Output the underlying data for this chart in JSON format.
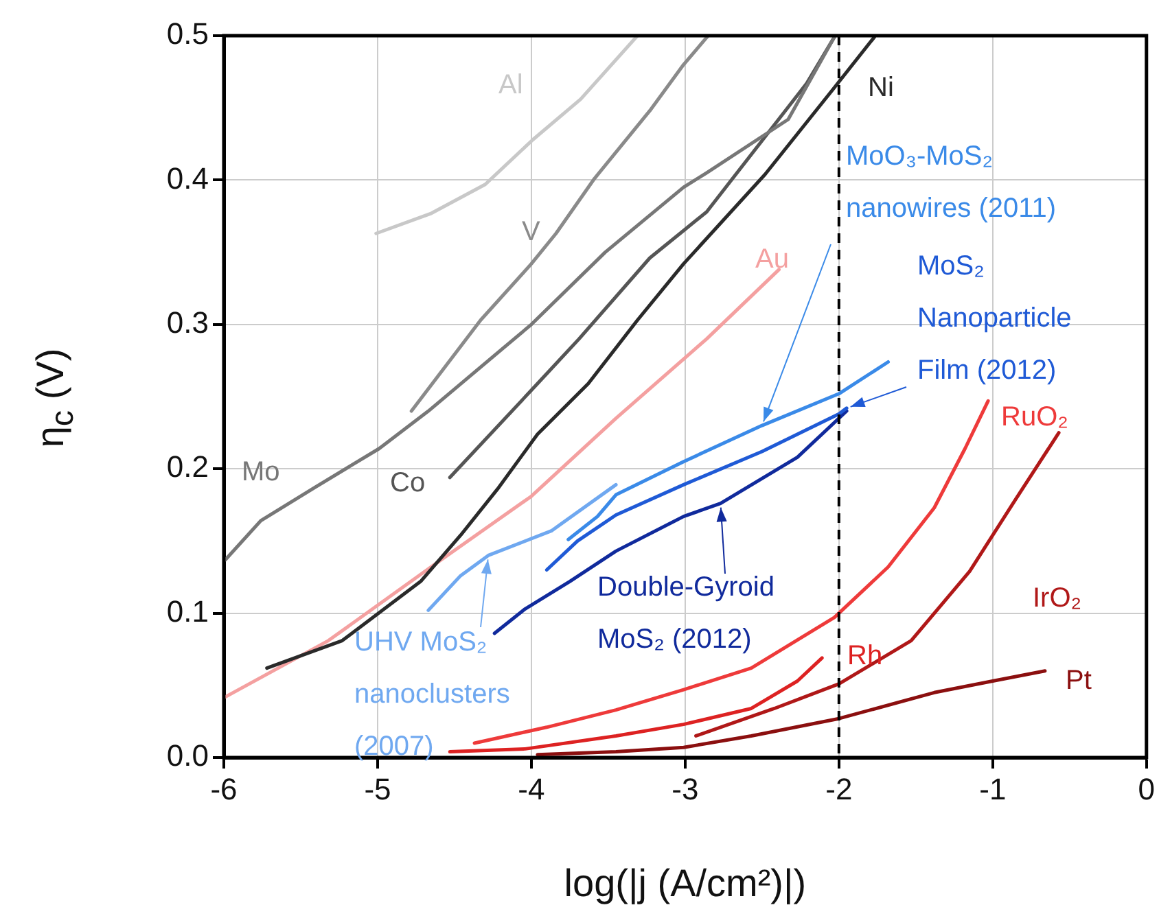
{
  "chart_data": {
    "type": "line",
    "xlabel": "log(|j (A/cm²)|)",
    "ylabel": "η$_{c}$ (V)",
    "xlim": [
      -6,
      0
    ],
    "xticks": [
      -6,
      -5,
      -4,
      -3,
      -2,
      -1,
      0
    ],
    "ylim": [
      0,
      0.5
    ],
    "yticks": [
      {
        "value": 0,
        "label": "0.0"
      },
      {
        "value": 0.1,
        "label": "0.1"
      },
      {
        "value": 0.2,
        "label": "0.2"
      },
      {
        "value": 0.3,
        "label": "0.3"
      },
      {
        "value": 0.4,
        "label": "0.4"
      },
      {
        "value": 0.5,
        "label": "0.5"
      }
    ],
    "grid": true,
    "legend": false,
    "marker": "none",
    "line_style": "solid",
    "ref_lines": [
      {
        "axis": "x",
        "value": -2,
        "color": "#000000",
        "line_style": "dashed"
      }
    ],
    "series": [
      {
        "name": "Al",
        "color": "#c8c8c8",
        "x": [
          -5.01,
          -4.65,
          -4.3,
          -3.99,
          -3.68,
          -3.31
        ],
        "values": [
          0.363,
          0.377,
          0.397,
          0.428,
          0.456,
          0.5
        ]
      },
      {
        "name": "V",
        "color": "#8a8a8a",
        "x": [
          -4.78,
          -4.33,
          -4.0,
          -3.84,
          -3.59,
          -3.23,
          -3.01,
          -2.85
        ],
        "values": [
          0.24,
          0.303,
          0.342,
          0.363,
          0.401,
          0.448,
          0.48,
          0.5
        ]
      },
      {
        "name": "Mo",
        "color": "#777777",
        "x": [
          -5.99,
          -5.76,
          -5.41,
          -4.99,
          -4.67,
          -4.0,
          -3.52,
          -3.01,
          -2.86,
          -2.33,
          -2.03
        ],
        "values": [
          0.137,
          0.164,
          0.187,
          0.214,
          0.24,
          0.3,
          0.35,
          0.395,
          0.405,
          0.442,
          0.499
        ]
      },
      {
        "name": "Co",
        "color": "#555555",
        "x": [
          -4.53,
          -3.96,
          -3.69,
          -3.23,
          -3.01,
          -2.86,
          -2.21,
          -2.03
        ],
        "values": [
          0.194,
          0.259,
          0.29,
          0.346,
          0.365,
          0.378,
          0.467,
          0.499
        ]
      },
      {
        "name": "Ni",
        "color": "#2a2a2a",
        "x": [
          -5.72,
          -5.23,
          -4.72,
          -4.46,
          -4.22,
          -3.96,
          -3.63,
          -3.31,
          -3.01,
          -2.48,
          -2.03,
          -1.77
        ],
        "values": [
          0.062,
          0.081,
          0.122,
          0.154,
          0.186,
          0.224,
          0.259,
          0.303,
          0.342,
          0.404,
          0.464,
          0.499
        ]
      },
      {
        "name": "Au",
        "color": "#f4a0a0",
        "x": [
          -5.99,
          -5.32,
          -4.64,
          -4.0,
          -3.45,
          -2.86,
          -2.39
        ],
        "values": [
          0.042,
          0.081,
          0.133,
          0.181,
          0.235,
          0.29,
          0.338
        ]
      },
      {
        "name": "UHV MoS₂ nanoclusters (2007)",
        "color": "#6fa8f0",
        "x": [
          -4.67,
          -4.46,
          -4.28,
          -3.87,
          -3.45
        ],
        "values": [
          0.102,
          0.126,
          0.14,
          0.157,
          0.189
        ]
      },
      {
        "name": "MoO₃-MoS₂ nanowires (2011)",
        "color": "#3a8ae8",
        "x": [
          -3.76,
          -3.57,
          -3.45,
          -3.01,
          -2.5,
          -2.0,
          -1.68
        ],
        "values": [
          0.151,
          0.167,
          0.182,
          0.205,
          0.23,
          0.252,
          0.274
        ]
      },
      {
        "name": "MoS₂ Nanoparticle Film (2012)",
        "color": "#1f5ad6",
        "x": [
          -3.9,
          -3.7,
          -3.45,
          -3.01,
          -2.5,
          -2.0,
          -1.95
        ],
        "values": [
          0.13,
          0.15,
          0.168,
          0.189,
          0.212,
          0.238,
          0.242
        ]
      },
      {
        "name": "Double-Gyroid MoS₂ (2012)",
        "color": "#102a9c",
        "x": [
          -4.24,
          -4.04,
          -3.75,
          -3.45,
          -3.01,
          -2.77,
          -2.27,
          -1.95
        ],
        "values": [
          0.086,
          0.103,
          0.122,
          0.143,
          0.167,
          0.176,
          0.208,
          0.24
        ]
      },
      {
        "name": "RuO₂",
        "color": "#ee3a3a",
        "x": [
          -4.37,
          -3.9,
          -3.45,
          -3.01,
          -2.57,
          -2.03,
          -1.68,
          -1.38,
          -1.18,
          -1.03
        ],
        "values": [
          0.01,
          0.021,
          0.033,
          0.047,
          0.062,
          0.097,
          0.132,
          0.173,
          0.214,
          0.247
        ]
      },
      {
        "name": "Rh",
        "color": "#dd2222",
        "x": [
          -4.53,
          -4.04,
          -3.45,
          -3.01,
          -2.57,
          -2.27,
          -2.11
        ],
        "values": [
          0.004,
          0.006,
          0.015,
          0.023,
          0.034,
          0.053,
          0.069
        ]
      },
      {
        "name": "IrO₂",
        "color": "#b01818",
        "x": [
          -2.93,
          -2.42,
          -2.0,
          -1.53,
          -1.15,
          -0.85,
          -0.57
        ],
        "values": [
          0.015,
          0.034,
          0.051,
          0.081,
          0.129,
          0.179,
          0.225
        ]
      },
      {
        "name": "Pt",
        "color": "#8b0f0f",
        "x": [
          -3.96,
          -3.45,
          -3.01,
          -2.57,
          -2.0,
          -1.38,
          -1.0,
          -0.66
        ],
        "values": [
          0.002,
          0.004,
          0.007,
          0.015,
          0.027,
          0.045,
          0.053,
          0.06
        ]
      }
    ]
  }
}
